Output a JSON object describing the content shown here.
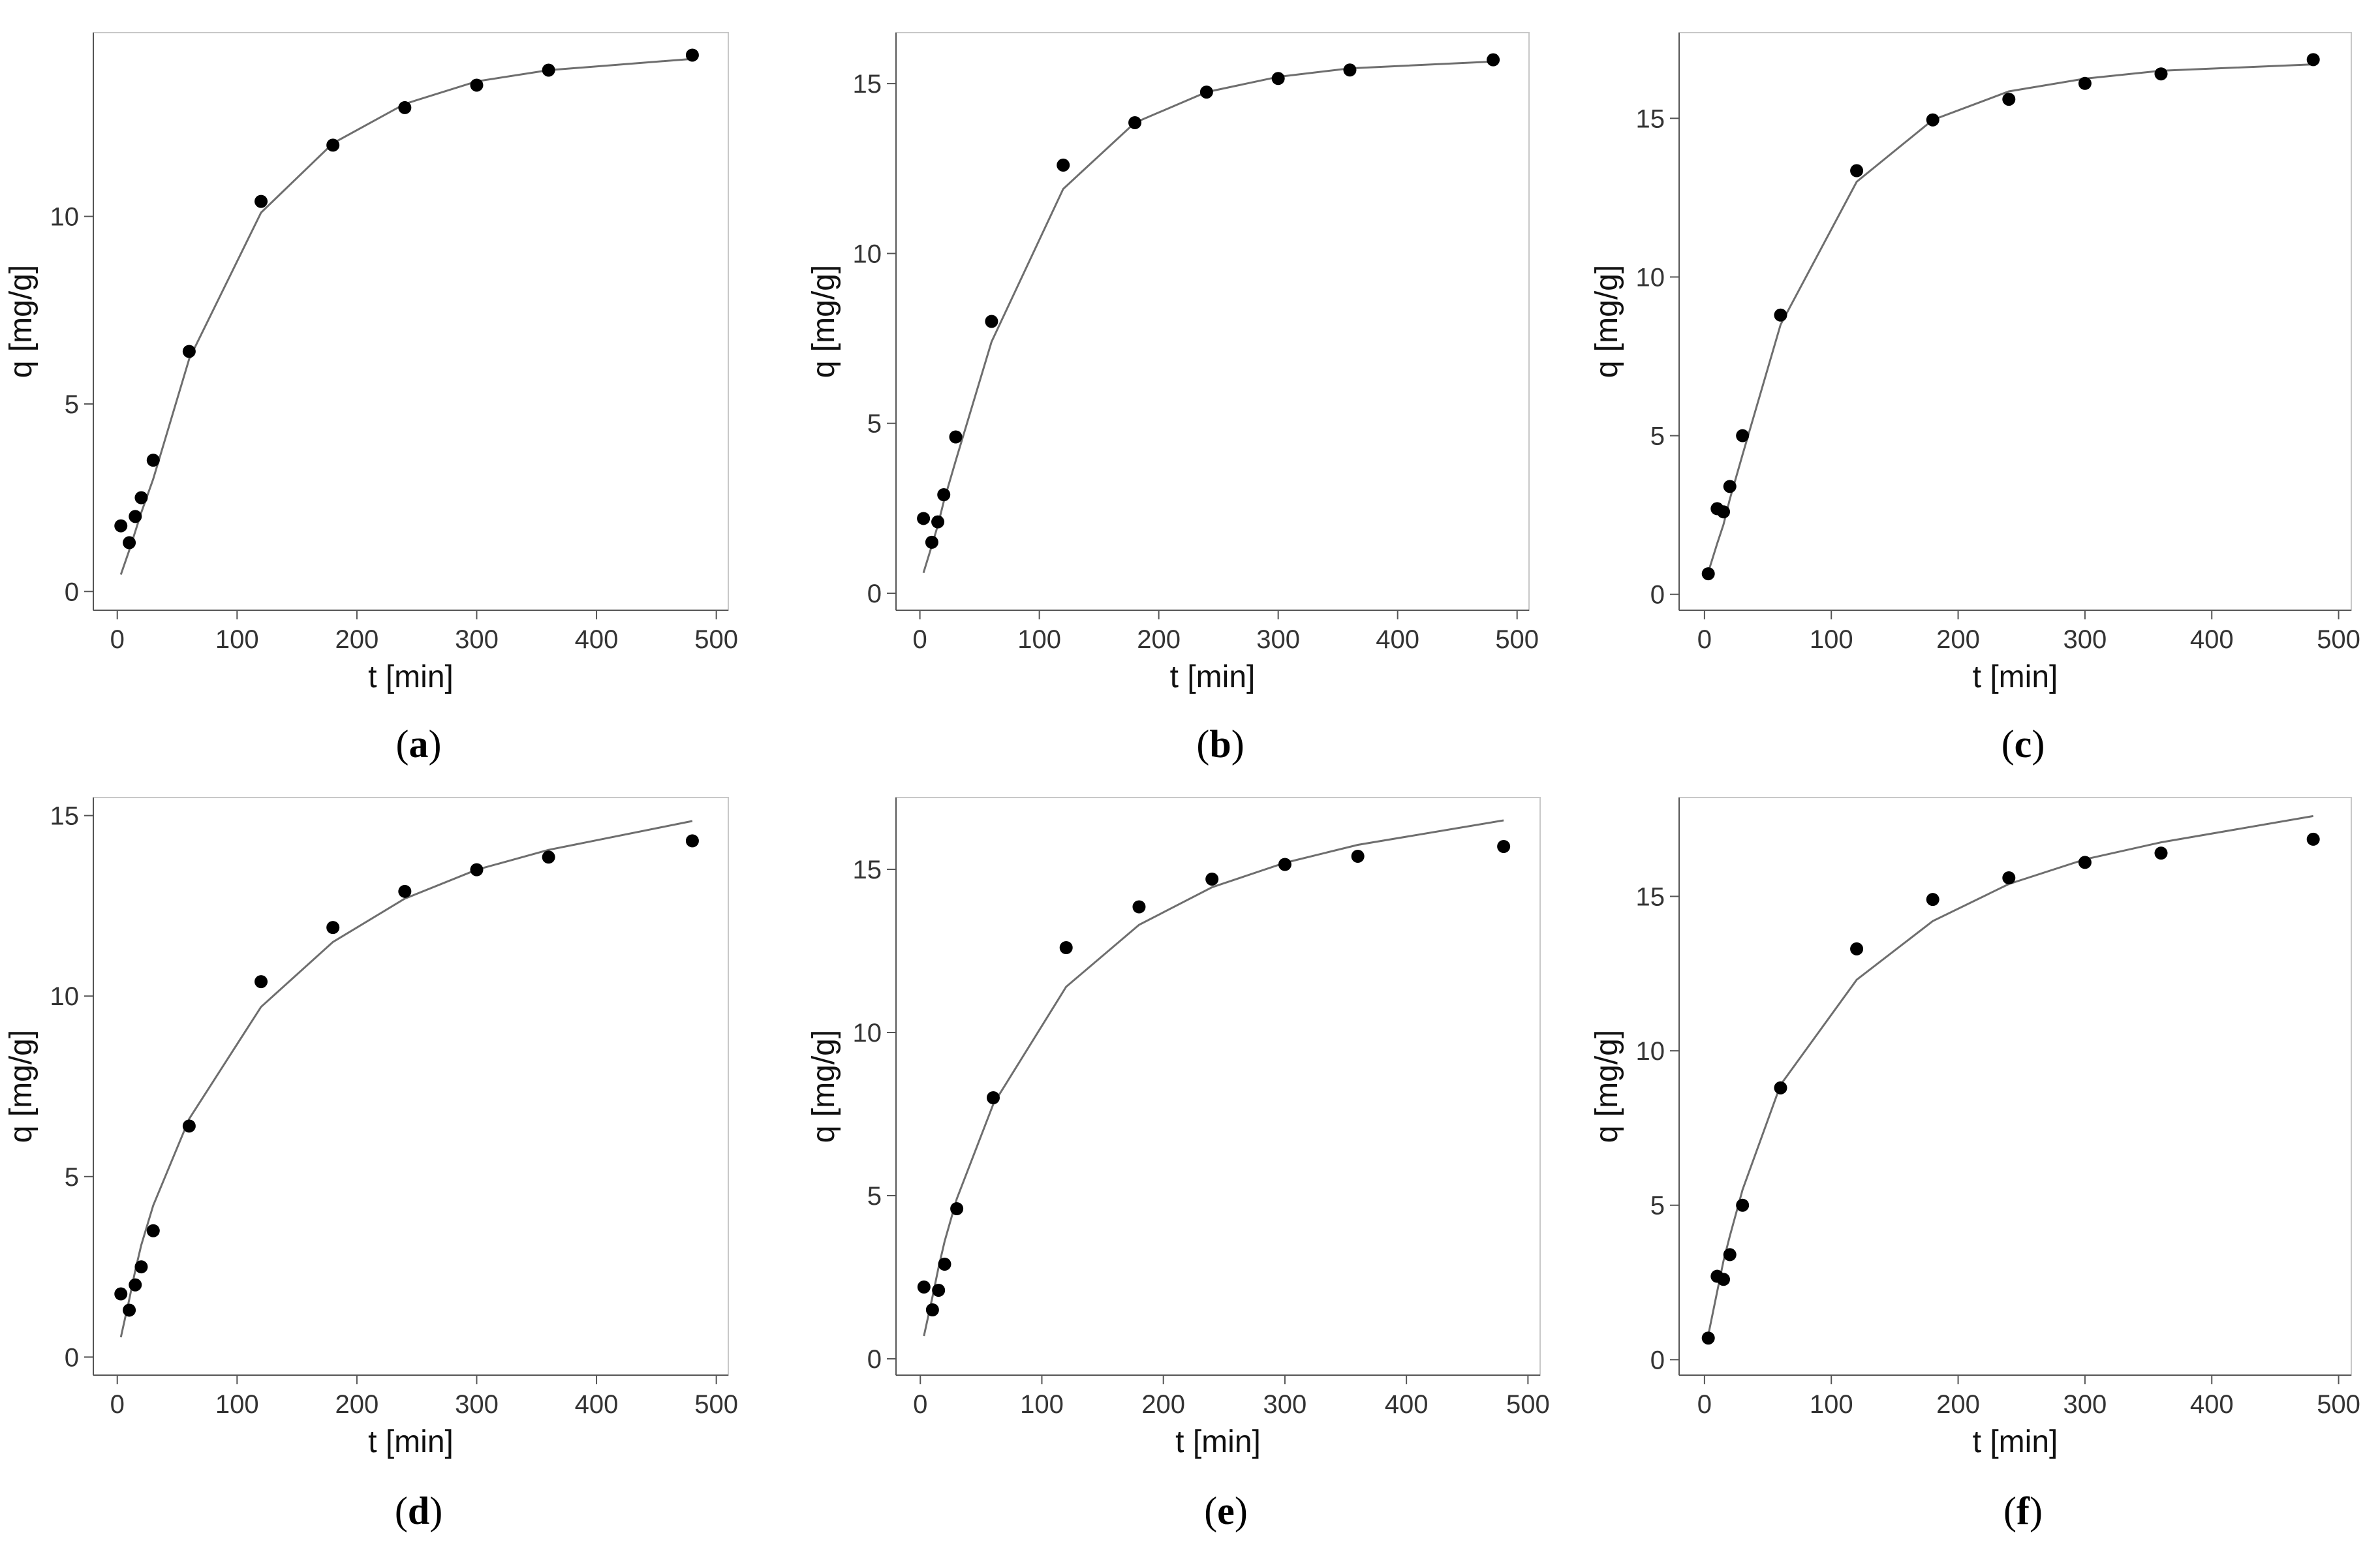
{
  "chart_data": [
    {
      "type": "scatter",
      "caption_letter": "a",
      "xlabel": "t [min]",
      "ylabel": "q [mg/g]",
      "xlim": [
        -20,
        510
      ],
      "ylim": [
        -0.5,
        14.9
      ],
      "xticks": [
        0,
        100,
        200,
        300,
        400,
        500
      ],
      "xtick_labels": [
        "0",
        "100",
        "200",
        "300",
        "400",
        "500"
      ],
      "yticks": [
        0,
        5,
        10
      ],
      "ytick_labels": [
        "0",
        "5",
        "10"
      ],
      "grid": false,
      "series": [
        {
          "kind": "points",
          "x": [
            3,
            10,
            15,
            20,
            30,
            60,
            120,
            180,
            240,
            300,
            360,
            480
          ],
          "y": [
            1.75,
            1.3,
            2.0,
            2.5,
            3.5,
            6.4,
            10.4,
            11.9,
            12.9,
            13.5,
            13.9,
            14.3
          ]
        },
        {
          "kind": "line",
          "x": [
            3,
            10,
            15,
            20,
            30,
            60,
            120,
            180,
            240,
            300,
            360,
            480
          ],
          "y": [
            0.45,
            1.1,
            1.6,
            2.1,
            3.0,
            6.2,
            10.1,
            11.95,
            13.0,
            13.6,
            13.9,
            14.2
          ]
        }
      ]
    },
    {
      "type": "scatter",
      "caption_letter": "b",
      "xlabel": "t [min]",
      "ylabel": "q [mg/g]",
      "xlim": [
        -20,
        510
      ],
      "ylim": [
        -0.5,
        16.5
      ],
      "xticks": [
        0,
        100,
        200,
        300,
        400,
        500
      ],
      "xtick_labels": [
        "0",
        "100",
        "200",
        "300",
        "400",
        "500"
      ],
      "yticks": [
        0,
        5,
        10,
        15
      ],
      "ytick_labels": [
        "0",
        "5",
        "10",
        "15"
      ],
      "grid": false,
      "series": [
        {
          "kind": "points",
          "x": [
            3,
            10,
            15,
            20,
            30,
            60,
            120,
            180,
            240,
            300,
            360,
            480
          ],
          "y": [
            2.2,
            1.5,
            2.1,
            2.9,
            4.6,
            8.0,
            12.6,
            13.85,
            14.75,
            15.15,
            15.4,
            15.7
          ]
        },
        {
          "kind": "line",
          "x": [
            3,
            10,
            15,
            20,
            30,
            60,
            120,
            180,
            240,
            300,
            360,
            480
          ],
          "y": [
            0.6,
            1.4,
            2.0,
            2.7,
            3.9,
            7.4,
            11.9,
            13.85,
            14.75,
            15.2,
            15.45,
            15.65
          ]
        }
      ]
    },
    {
      "type": "scatter",
      "caption_letter": "c",
      "xlabel": "t [min]",
      "ylabel": "q [mg/g]",
      "xlim": [
        -20,
        510
      ],
      "ylim": [
        -0.5,
        17.7
      ],
      "xticks": [
        0,
        100,
        200,
        300,
        400,
        500
      ],
      "xtick_labels": [
        "0",
        "100",
        "200",
        "300",
        "400",
        "500"
      ],
      "yticks": [
        0,
        5,
        10,
        15
      ],
      "ytick_labels": [
        "0",
        "5",
        "10",
        "15"
      ],
      "grid": false,
      "series": [
        {
          "kind": "points",
          "x": [
            3,
            10,
            15,
            20,
            30,
            60,
            120,
            180,
            240,
            300,
            360,
            480
          ],
          "y": [
            0.65,
            2.7,
            2.6,
            3.4,
            5.0,
            8.8,
            13.35,
            14.95,
            15.6,
            16.1,
            16.4,
            16.85
          ]
        },
        {
          "kind": "line",
          "x": [
            3,
            10,
            15,
            20,
            30,
            60,
            120,
            180,
            240,
            300,
            360,
            480
          ],
          "y": [
            0.7,
            1.6,
            2.2,
            3.0,
            4.4,
            8.5,
            13.0,
            14.95,
            15.85,
            16.25,
            16.5,
            16.7
          ]
        }
      ]
    },
    {
      "type": "scatter",
      "caption_letter": "d",
      "xlabel": "t [min]",
      "ylabel": "q [mg/g]",
      "xlim": [
        -20,
        510
      ],
      "ylim": [
        -0.5,
        15.5
      ],
      "xticks": [
        0,
        100,
        200,
        300,
        400,
        500
      ],
      "xtick_labels": [
        "0",
        "100",
        "200",
        "300",
        "400",
        "500"
      ],
      "yticks": [
        0,
        5,
        10,
        15
      ],
      "ytick_labels": [
        "0",
        "5",
        "10",
        "15"
      ],
      "grid": false,
      "series": [
        {
          "kind": "points",
          "x": [
            3,
            10,
            15,
            20,
            30,
            60,
            120,
            180,
            240,
            300,
            360,
            480
          ],
          "y": [
            1.75,
            1.3,
            2.0,
            2.5,
            3.5,
            6.4,
            10.4,
            11.9,
            12.9,
            13.5,
            13.85,
            14.3
          ]
        },
        {
          "kind": "line",
          "x": [
            3,
            10,
            15,
            20,
            30,
            60,
            120,
            180,
            240,
            300,
            360,
            480
          ],
          "y": [
            0.55,
            1.6,
            2.4,
            3.1,
            4.2,
            6.6,
            9.7,
            11.5,
            12.7,
            13.5,
            14.05,
            14.85
          ]
        }
      ]
    },
    {
      "type": "scatter",
      "caption_letter": "e",
      "xlabel": "t [min]",
      "ylabel": "q [mg/g]",
      "xlim": [
        -20,
        510
      ],
      "ylim": [
        -0.5,
        17.2
      ],
      "xticks": [
        0,
        100,
        200,
        300,
        400,
        500
      ],
      "xtick_labels": [
        "0",
        "100",
        "200",
        "300",
        "400",
        "500"
      ],
      "yticks": [
        0,
        5,
        10,
        15
      ],
      "ytick_labels": [
        "0",
        "5",
        "10",
        "15"
      ],
      "grid": false,
      "series": [
        {
          "kind": "points",
          "x": [
            3,
            10,
            15,
            20,
            30,
            60,
            120,
            180,
            240,
            300,
            360,
            480
          ],
          "y": [
            2.2,
            1.5,
            2.1,
            2.9,
            4.6,
            8.0,
            12.6,
            13.85,
            14.7,
            15.15,
            15.4,
            15.7
          ]
        },
        {
          "kind": "line",
          "x": [
            3,
            10,
            15,
            20,
            30,
            60,
            120,
            180,
            240,
            300,
            360,
            480
          ],
          "y": [
            0.7,
            1.9,
            2.8,
            3.6,
            4.9,
            7.8,
            11.4,
            13.3,
            14.45,
            15.2,
            15.75,
            16.5
          ]
        }
      ]
    },
    {
      "type": "scatter",
      "caption_letter": "f",
      "xlabel": "t [min]",
      "ylabel": "q [mg/g]",
      "xlim": [
        -20,
        510
      ],
      "ylim": [
        -0.5,
        18.2
      ],
      "xticks": [
        0,
        100,
        200,
        300,
        400,
        500
      ],
      "xtick_labels": [
        "0",
        "100",
        "200",
        "300",
        "400",
        "500"
      ],
      "yticks": [
        0,
        5,
        10,
        15
      ],
      "ytick_labels": [
        "0",
        "5",
        "10",
        "15"
      ],
      "grid": false,
      "series": [
        {
          "kind": "points",
          "x": [
            3,
            10,
            15,
            20,
            30,
            60,
            120,
            180,
            240,
            300,
            360,
            480
          ],
          "y": [
            0.7,
            2.7,
            2.6,
            3.4,
            5.0,
            8.8,
            13.3,
            14.9,
            15.6,
            16.1,
            16.4,
            16.85
          ]
        },
        {
          "kind": "line",
          "x": [
            3,
            10,
            15,
            20,
            30,
            60,
            120,
            180,
            240,
            300,
            360,
            480
          ],
          "y": [
            0.8,
            2.2,
            3.2,
            4.0,
            5.5,
            8.9,
            12.3,
            14.2,
            15.4,
            16.2,
            16.75,
            17.6
          ]
        }
      ]
    }
  ]
}
